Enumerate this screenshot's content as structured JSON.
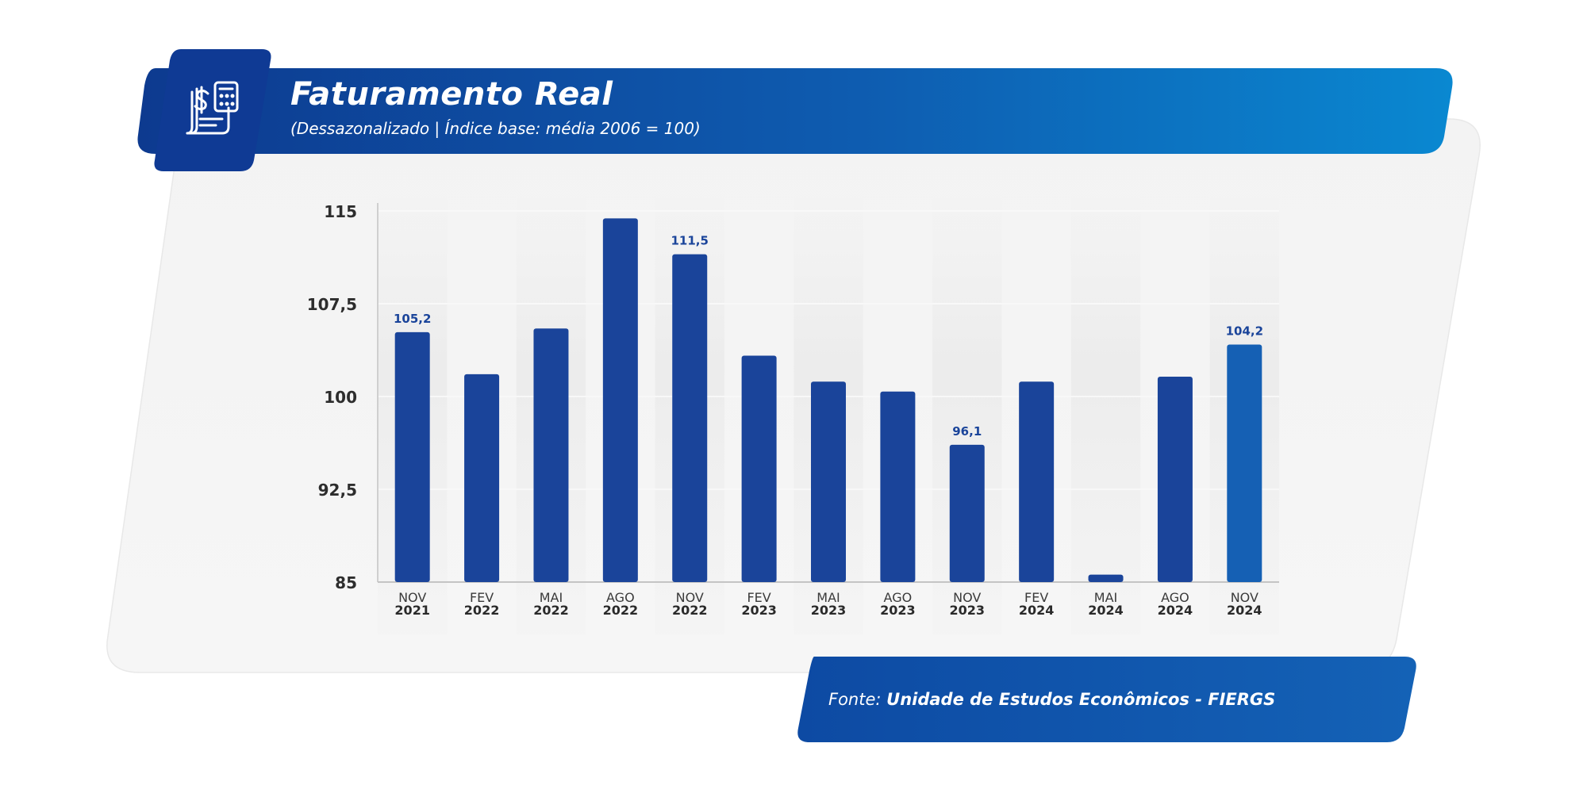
{
  "header": {
    "title": "Faturamento Real",
    "subtitle": "(Dessazonalizado | Índice base: média 2006 = 100)",
    "icon": "invoice-calculator-icon"
  },
  "footer": {
    "source_prefix": "Fonte: ",
    "source_name": "Unidade de Estudos Econômicos - FIERGS"
  },
  "colors": {
    "bar": "#1a449a",
    "bar_last": "#1560b4",
    "header_start": "#0d3a8f",
    "header_end": "#0b86d0",
    "label": "#1a449a",
    "axis_text": "#2d2d2d"
  },
  "chart_data": {
    "type": "bar",
    "title": "Faturamento Real",
    "subtitle": "(Dessazonalizado | Índice base: média 2006 = 100)",
    "categories": [
      [
        "NOV",
        "2021"
      ],
      [
        "FEV",
        "2022"
      ],
      [
        "MAI",
        "2022"
      ],
      [
        "AGO",
        "2022"
      ],
      [
        "NOV",
        "2022"
      ],
      [
        "FEV",
        "2023"
      ],
      [
        "MAI",
        "2023"
      ],
      [
        "AGO",
        "2023"
      ],
      [
        "NOV",
        "2023"
      ],
      [
        "FEV",
        "2024"
      ],
      [
        "MAI",
        "2024"
      ],
      [
        "AGO",
        "2024"
      ],
      [
        "NOV",
        "2024"
      ]
    ],
    "values": [
      105.2,
      101.8,
      105.5,
      114.4,
      111.5,
      103.3,
      101.2,
      100.4,
      96.1,
      101.2,
      85.6,
      101.6,
      104.2
    ],
    "data_labels": [
      {
        "index": 0,
        "text": "105,2"
      },
      {
        "index": 4,
        "text": "111,5"
      },
      {
        "index": 8,
        "text": "96,1"
      },
      {
        "index": 12,
        "text": "104,2"
      }
    ],
    "ylim": [
      85,
      115
    ],
    "yticks": [
      {
        "value": 85,
        "label": "85"
      },
      {
        "value": 92.5,
        "label": "92,5"
      },
      {
        "value": 100,
        "label": "100"
      },
      {
        "value": 107.5,
        "label": "107,5"
      },
      {
        "value": 115,
        "label": "115"
      }
    ],
    "grid": true,
    "xlabel": "",
    "ylabel": ""
  }
}
